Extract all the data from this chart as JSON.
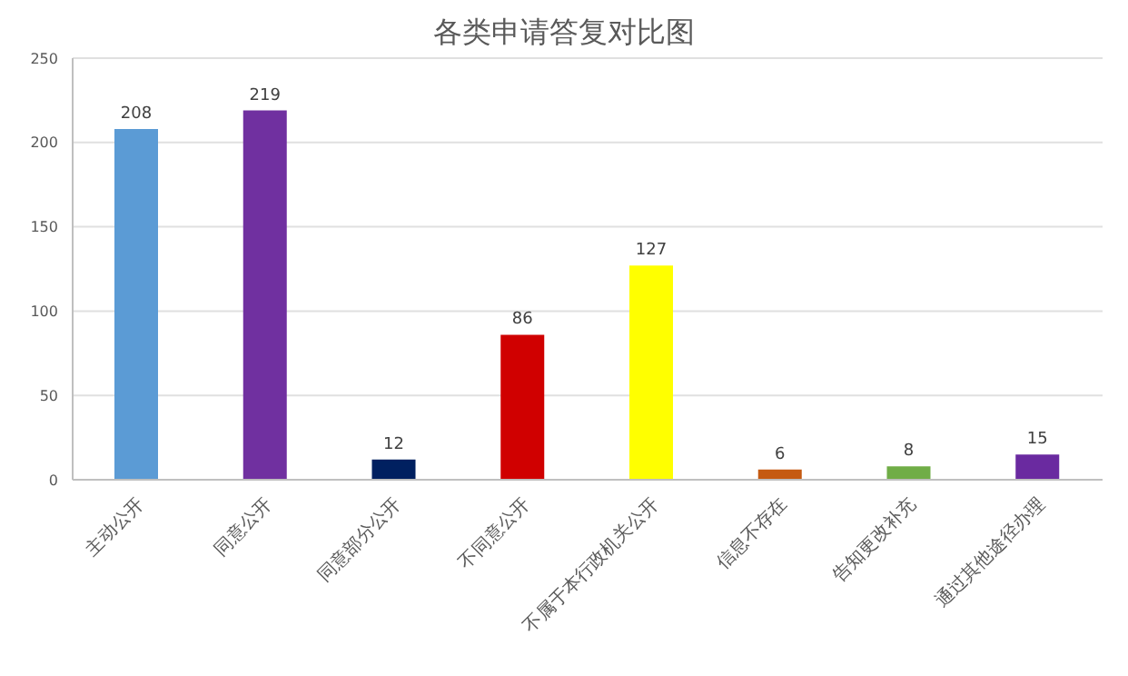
{
  "chart_data": {
    "type": "bar",
    "title": "各类申请答复对比图",
    "categories": [
      "主动公开",
      "同意公开",
      "同意部分公开",
      "不同意公开",
      "不属于本行政机关公开",
      "信息不存在",
      "告知更改补充",
      "通过其他途径办理"
    ],
    "values": [
      208,
      219,
      12,
      86,
      127,
      6,
      8,
      15
    ],
    "colors": [
      "#5b9bd5",
      "#7030a0",
      "#002060",
      "#d00000",
      "#ffff00",
      "#c55a11",
      "#70ad47",
      "#6a2aa0"
    ],
    "ylim": [
      0,
      250
    ],
    "yticks": [
      0,
      50,
      100,
      150,
      200,
      250
    ],
    "grid": "y",
    "data_labels": true
  }
}
